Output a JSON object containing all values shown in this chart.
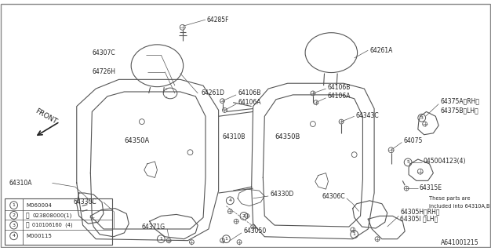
{
  "background_color": "#ffffff",
  "line_color": "#555555",
  "text_color": "#222222",
  "diagram_code": "A641001215",
  "legend_items": [
    {
      "num": "1",
      "text": "M060004"
    },
    {
      "num": "2",
      "prefix": "N",
      "text": "023808000(1)"
    },
    {
      "num": "3",
      "prefix": "B",
      "text": "010106160  (4)"
    },
    {
      "num": "4",
      "text": "M000115"
    }
  ]
}
